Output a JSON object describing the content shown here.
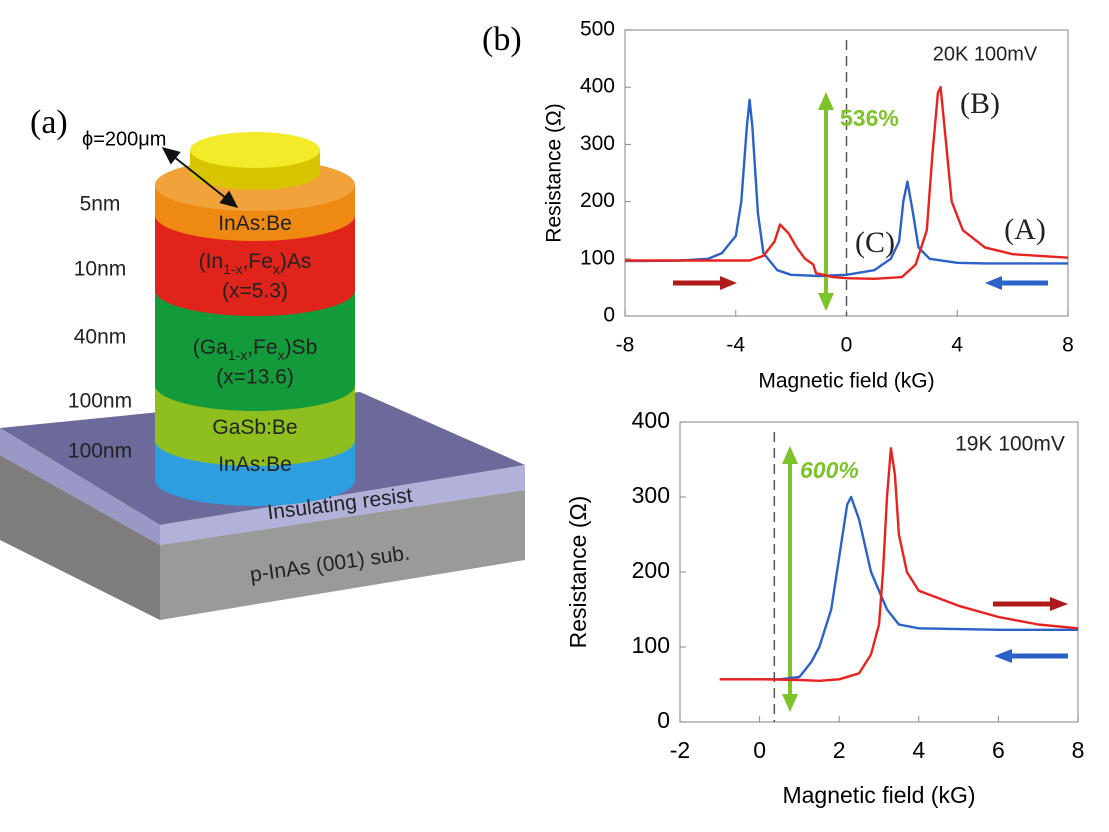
{
  "panel_a": {
    "label": "(a)",
    "diameter": "ϕ=200μm",
    "thicknesses": [
      "5nm",
      "10nm",
      "40nm",
      "100nm",
      "100nm"
    ],
    "layers": [
      {
        "parts": [
          "InAs:Be"
        ]
      },
      {
        "parts": [
          "(In",
          "1-x",
          ",Fe",
          "x",
          ")As"
        ],
        "composition": "(x=5.3)"
      },
      {
        "parts": [
          "(Ga",
          "1-x",
          ",Fe",
          "x",
          ")Sb"
        ],
        "composition": "(x=13.6)"
      },
      {
        "parts": [
          "GaSb:Be"
        ]
      },
      {
        "parts": [
          "InAs:Be"
        ]
      }
    ],
    "resist": "Insulating resist",
    "substrate": "p-InAs (001) sub."
  },
  "panel_b_label": "(b)",
  "chart_data": [
    {
      "type": "line",
      "xlabel": "Magnetic field (kG)",
      "ylabel": "Resistance (Ω)",
      "xlim": [
        -8,
        8
      ],
      "xticks": [
        -8,
        -4,
        0,
        4,
        8
      ],
      "ylim": [
        0,
        500
      ],
      "yticks": [
        0,
        100,
        200,
        300,
        400,
        500
      ],
      "vline": 0,
      "annotations": [
        "20K 100mV",
        "536%",
        "(B)",
        "(A)",
        "(C)"
      ],
      "series": [
        {
          "color": "#2a62c9",
          "x": [
            -8,
            -6,
            -5,
            -4.5,
            -4,
            -3.8,
            -3.6,
            -3.5,
            -3.4,
            -3.2,
            -3,
            -2.5,
            -2,
            -1,
            0,
            1,
            1.6,
            1.9,
            2.05,
            2.2,
            2.4,
            2.6,
            3,
            4,
            5,
            8
          ],
          "values": [
            96,
            97,
            100,
            110,
            140,
            200,
            330,
            378,
            330,
            180,
            110,
            80,
            72,
            70,
            72,
            80,
            100,
            130,
            200,
            235,
            180,
            120,
            100,
            93,
            92,
            92
          ]
        },
        {
          "color": "#e8231f",
          "x": [
            -8,
            -5,
            -3.5,
            -3,
            -2.6,
            -2.4,
            -2.1,
            -1.8,
            -1.5,
            -1.2,
            -1.1,
            -0.5,
            0,
            1,
            2,
            2.5,
            2.9,
            3.1,
            3.3,
            3.4,
            3.6,
            3.8,
            4.2,
            5,
            6,
            8
          ],
          "values": [
            97,
            97,
            97,
            105,
            130,
            160,
            145,
            120,
            100,
            90,
            75,
            68,
            66,
            65,
            68,
            90,
            150,
            280,
            390,
            400,
            300,
            200,
            150,
            120,
            108,
            102
          ]
        }
      ]
    },
    {
      "type": "line",
      "xlabel": "Magnetic field (kG)",
      "ylabel": "Resistance (Ω)",
      "xlim": [
        -2,
        8
      ],
      "xticks": [
        -2,
        0,
        2,
        4,
        6,
        8
      ],
      "ylim": [
        0,
        400
      ],
      "yticks": [
        0,
        100,
        200,
        300,
        400
      ],
      "vline": 0.37,
      "annotations": [
        "19K 100mV",
        "600%"
      ],
      "series": [
        {
          "color": "#2a62c9",
          "x": [
            -1,
            0.5,
            1,
            1.3,
            1.5,
            1.8,
            2,
            2.2,
            2.3,
            2.5,
            2.8,
            3.2,
            3.5,
            4,
            6,
            8
          ],
          "values": [
            57,
            57,
            60,
            80,
            100,
            150,
            220,
            290,
            300,
            270,
            200,
            150,
            130,
            125,
            123,
            123
          ]
        },
        {
          "color": "#e8231f",
          "x": [
            -1,
            0,
            1,
            1.5,
            2,
            2.5,
            2.8,
            3,
            3.1,
            3.2,
            3.3,
            3.4,
            3.5,
            3.7,
            4,
            5,
            6,
            7,
            8
          ],
          "values": [
            57,
            57,
            56,
            55,
            57,
            65,
            90,
            130,
            200,
            300,
            365,
            330,
            250,
            200,
            175,
            155,
            140,
            130,
            125
          ]
        }
      ]
    }
  ]
}
